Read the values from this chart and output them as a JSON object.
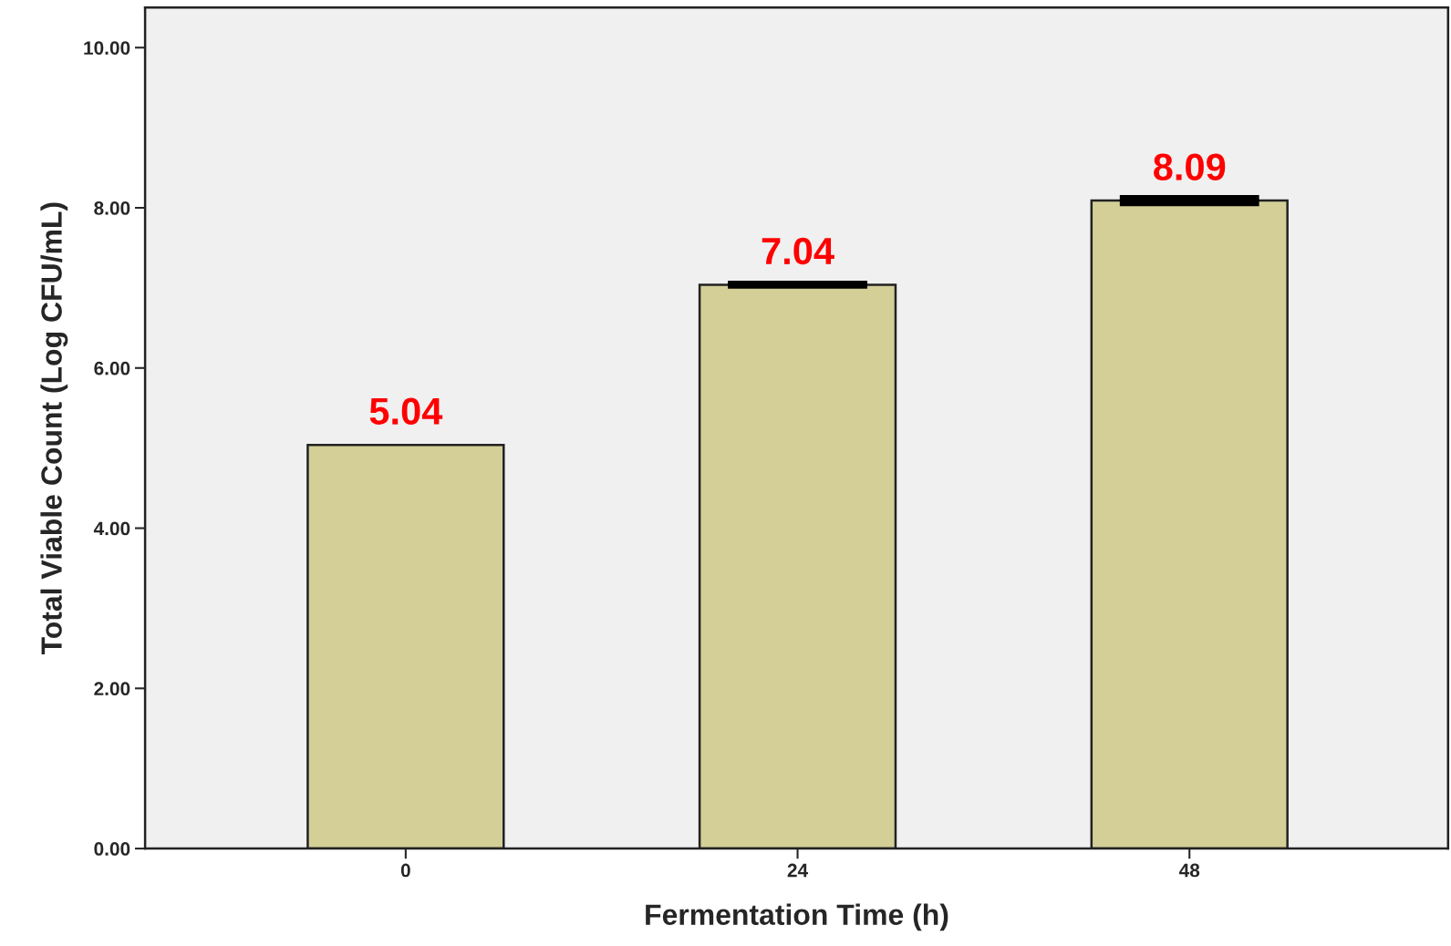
{
  "chart_data": {
    "type": "bar",
    "xlabel": "Fermentation Time (h)",
    "ylabel": "Total Viable Count (Log CFU/mL)",
    "categories": [
      "0",
      "24",
      "48"
    ],
    "values": [
      5.04,
      7.04,
      8.09
    ],
    "errors": [
      null,
      0.01,
      0.03
    ],
    "color": "#d3cf97",
    "ylim": [
      0,
      10.5
    ],
    "yticks": [
      {
        "value": 0,
        "label": "0.00"
      },
      {
        "value": 2,
        "label": "2.00"
      },
      {
        "value": 4,
        "label": "4.00"
      },
      {
        "value": 6,
        "label": "6.00"
      },
      {
        "value": 8,
        "label": "8.00"
      },
      {
        "value": 10,
        "label": "10.00"
      }
    ],
    "data_labels": true,
    "grid": false,
    "legend": false
  }
}
